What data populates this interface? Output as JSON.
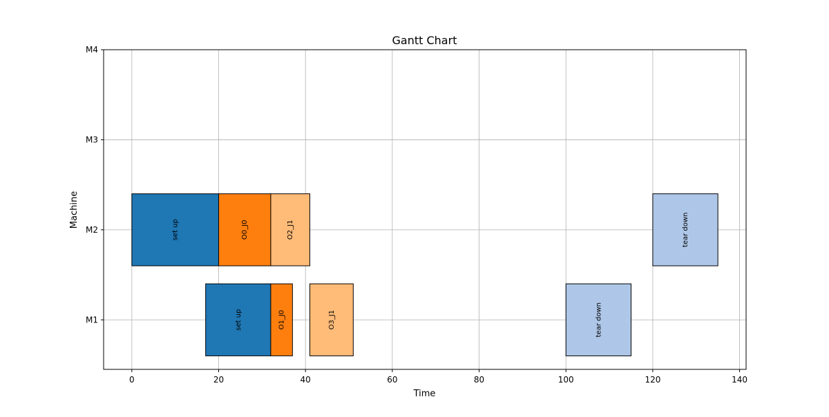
{
  "chart_data": {
    "type": "gantt",
    "title": "Gantt Chart",
    "xlabel": "Time",
    "ylabel": "Machine",
    "xlim": [
      -6.5,
      141.5
    ],
    "x_ticks": [
      0,
      20,
      40,
      60,
      80,
      100,
      120,
      140
    ],
    "y_categories": [
      "M1",
      "M2",
      "M3",
      "M4"
    ],
    "grid": true,
    "colors": {
      "set_up": "#1f77b4",
      "op_j0": "#ff7f0e",
      "op_j1": "#ffbb78",
      "tear_down": "#aec7e8"
    },
    "tasks": [
      {
        "machine": "M2",
        "start": 0,
        "end": 20,
        "label": "set up",
        "color_key": "set_up"
      },
      {
        "machine": "M2",
        "start": 20,
        "end": 32,
        "label": "O0_J0",
        "color_key": "op_j0"
      },
      {
        "machine": "M2",
        "start": 32,
        "end": 41,
        "label": "O2_J1",
        "color_key": "op_j1"
      },
      {
        "machine": "M2",
        "start": 120,
        "end": 135,
        "label": "tear down",
        "color_key": "tear_down"
      },
      {
        "machine": "M1",
        "start": 17,
        "end": 32,
        "label": "set up",
        "color_key": "set_up"
      },
      {
        "machine": "M1",
        "start": 32,
        "end": 37,
        "label": "O1_J0",
        "color_key": "op_j0"
      },
      {
        "machine": "M1",
        "start": 41,
        "end": 51,
        "label": "O3_J1",
        "color_key": "op_j1"
      },
      {
        "machine": "M1",
        "start": 100,
        "end": 115,
        "label": "tear down",
        "color_key": "tear_down"
      }
    ]
  }
}
